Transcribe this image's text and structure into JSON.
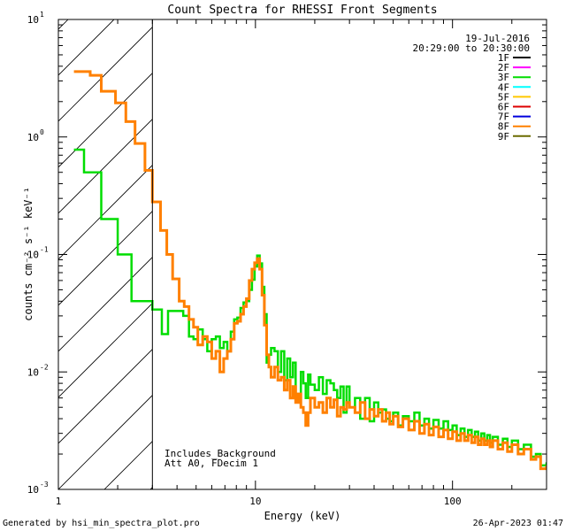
{
  "chart_data": {
    "type": "line",
    "title": "Count Spectra for RHESSI Front Segments",
    "xlabel": "Energy (keV)",
    "ylabel": "counts cm⁻² s⁻¹ keV⁻¹",
    "xscale": "log",
    "yscale": "log",
    "xlim": [
      1,
      300
    ],
    "ylim": [
      0.001,
      10
    ],
    "x_ticks": [
      {
        "value": 1,
        "label": "1"
      },
      {
        "value": 10,
        "label": "10"
      },
      {
        "value": 100,
        "label": "100"
      }
    ],
    "y_ticks": [
      {
        "value": 0.001,
        "base": "10",
        "exp": "-3"
      },
      {
        "value": 0.01,
        "base": "10",
        "exp": "-2"
      },
      {
        "value": 0.1,
        "base": "10",
        "exp": "-1"
      },
      {
        "value": 1,
        "base": "10",
        "exp": "0"
      },
      {
        "value": 10,
        "base": "10",
        "exp": "1"
      }
    ],
    "date": "19-Jul-2016",
    "time_range": "20:29:00 to 20:30:00",
    "legend": [
      {
        "name": "1F",
        "color": "#000000"
      },
      {
        "name": "2F",
        "color": "#ff00ff"
      },
      {
        "name": "3F",
        "color": "#00dd00"
      },
      {
        "name": "4F",
        "color": "#00ffff"
      },
      {
        "name": "5F",
        "color": "#ffc800"
      },
      {
        "name": "6F",
        "color": "#dd0000"
      },
      {
        "name": "7F",
        "color": "#0000dd"
      },
      {
        "name": "8F",
        "color": "#ff8000"
      },
      {
        "name": "9F",
        "color": "#6b6b00"
      }
    ],
    "shaded_region": {
      "xmin": 1,
      "xmax": 3,
      "style": "diagonal-hatch"
    },
    "annotations": [
      "Includes_Background",
      "Att A0, FDecim 1"
    ],
    "series": [
      {
        "name": "3F",
        "color": "#00dd00",
        "points": [
          [
            1.2,
            0.78
          ],
          [
            1.35,
            0.5
          ],
          [
            1.65,
            0.2
          ],
          [
            2.0,
            0.1
          ],
          [
            2.35,
            0.04
          ],
          [
            3.0,
            0.034
          ],
          [
            3.35,
            0.021
          ],
          [
            3.6,
            0.033
          ],
          [
            4.0,
            0.033
          ],
          [
            4.3,
            0.03
          ],
          [
            4.6,
            0.02
          ],
          [
            4.85,
            0.019
          ],
          [
            5.1,
            0.023
          ],
          [
            5.4,
            0.019
          ],
          [
            5.7,
            0.015
          ],
          [
            6.0,
            0.019
          ],
          [
            6.3,
            0.02
          ],
          [
            6.6,
            0.016
          ],
          [
            6.9,
            0.018
          ],
          [
            7.2,
            0.015
          ],
          [
            7.5,
            0.022
          ],
          [
            7.8,
            0.028
          ],
          [
            8.1,
            0.029
          ],
          [
            8.4,
            0.035
          ],
          [
            8.7,
            0.039
          ],
          [
            9.0,
            0.04
          ],
          [
            9.3,
            0.05
          ],
          [
            9.6,
            0.061
          ],
          [
            9.9,
            0.079
          ],
          [
            10.2,
            0.098
          ],
          [
            10.5,
            0.084
          ],
          [
            10.8,
            0.053
          ],
          [
            11.1,
            0.031
          ],
          [
            11.4,
            0.012
          ],
          [
            11.7,
            0.014
          ],
          [
            12.0,
            0.016
          ],
          [
            12.5,
            0.015
          ],
          [
            13.0,
            0.01
          ],
          [
            13.5,
            0.015
          ],
          [
            14.0,
            0.0085
          ],
          [
            14.5,
            0.013
          ],
          [
            15.0,
            0.009
          ],
          [
            15.5,
            0.012
          ],
          [
            16.0,
            0.0065
          ],
          [
            16.5,
            0.006
          ],
          [
            17.0,
            0.01
          ],
          [
            17.5,
            0.008
          ],
          [
            18.0,
            0.006
          ],
          [
            18.5,
            0.0095
          ],
          [
            19.0,
            0.0078
          ],
          [
            20.0,
            0.007
          ],
          [
            21.0,
            0.009
          ],
          [
            22.0,
            0.0065
          ],
          [
            23.0,
            0.0085
          ],
          [
            24.0,
            0.008
          ],
          [
            25.0,
            0.007
          ],
          [
            26.0,
            0.006
          ],
          [
            27.0,
            0.0075
          ],
          [
            28.0,
            0.0045
          ],
          [
            29.0,
            0.0075
          ],
          [
            30.0,
            0.005
          ],
          [
            32.0,
            0.006
          ],
          [
            34.0,
            0.004
          ],
          [
            36.0,
            0.006
          ],
          [
            38.0,
            0.0038
          ],
          [
            40.0,
            0.0055
          ],
          [
            42.0,
            0.0045
          ],
          [
            44.0,
            0.0048
          ],
          [
            46.0,
            0.004
          ],
          [
            48.0,
            0.0038
          ],
          [
            50.0,
            0.0045
          ],
          [
            53.0,
            0.0035
          ],
          [
            56.0,
            0.0042
          ],
          [
            60.0,
            0.0038
          ],
          [
            64.0,
            0.0045
          ],
          [
            68.0,
            0.0035
          ],
          [
            72.0,
            0.004
          ],
          [
            76.0,
            0.0033
          ],
          [
            80.0,
            0.0039
          ],
          [
            85.0,
            0.0033
          ],
          [
            90.0,
            0.0038
          ],
          [
            95.0,
            0.0032
          ],
          [
            100.0,
            0.0035
          ],
          [
            105.0,
            0.0029
          ],
          [
            110.0,
            0.0033
          ],
          [
            115.0,
            0.0028
          ],
          [
            120.0,
            0.0032
          ],
          [
            125.0,
            0.0028
          ],
          [
            130.0,
            0.0031
          ],
          [
            135.0,
            0.0026
          ],
          [
            140.0,
            0.003
          ],
          [
            145.0,
            0.0026
          ],
          [
            150.0,
            0.0029
          ],
          [
            155.0,
            0.0025
          ],
          [
            160.0,
            0.0028
          ],
          [
            170.0,
            0.0024
          ],
          [
            180.0,
            0.0027
          ],
          [
            190.0,
            0.0023
          ],
          [
            200.0,
            0.0026
          ],
          [
            215.0,
            0.0022
          ],
          [
            230.0,
            0.0024
          ],
          [
            250.0,
            0.0019
          ],
          [
            265.0,
            0.002
          ],
          [
            280.0,
            0.0016
          ],
          [
            300.0,
            0.0017
          ]
        ]
      },
      {
        "name": "8F",
        "color": "#ff8000",
        "points": [
          [
            1.2,
            3.6
          ],
          [
            1.45,
            3.35
          ],
          [
            1.65,
            2.45
          ],
          [
            1.95,
            1.95
          ],
          [
            2.2,
            1.35
          ],
          [
            2.45,
            0.88
          ],
          [
            2.75,
            0.52
          ],
          [
            3.0,
            0.28
          ],
          [
            3.3,
            0.16
          ],
          [
            3.55,
            0.1
          ],
          [
            3.8,
            0.062
          ],
          [
            4.1,
            0.04
          ],
          [
            4.35,
            0.036
          ],
          [
            4.6,
            0.028
          ],
          [
            4.85,
            0.024
          ],
          [
            5.1,
            0.017
          ],
          [
            5.4,
            0.02
          ],
          [
            5.7,
            0.018
          ],
          [
            6.0,
            0.013
          ],
          [
            6.3,
            0.015
          ],
          [
            6.6,
            0.01
          ],
          [
            6.9,
            0.013
          ],
          [
            7.2,
            0.015
          ],
          [
            7.5,
            0.019
          ],
          [
            7.8,
            0.026
          ],
          [
            8.1,
            0.027
          ],
          [
            8.4,
            0.031
          ],
          [
            8.7,
            0.036
          ],
          [
            9.0,
            0.042
          ],
          [
            9.3,
            0.06
          ],
          [
            9.6,
            0.075
          ],
          [
            9.9,
            0.085
          ],
          [
            10.2,
            0.092
          ],
          [
            10.5,
            0.075
          ],
          [
            10.8,
            0.045
          ],
          [
            11.1,
            0.025
          ],
          [
            11.4,
            0.014
          ],
          [
            11.7,
            0.011
          ],
          [
            12.0,
            0.009
          ],
          [
            12.5,
            0.011
          ],
          [
            13.0,
            0.0085
          ],
          [
            13.5,
            0.009
          ],
          [
            14.0,
            0.007
          ],
          [
            14.5,
            0.0085
          ],
          [
            15.0,
            0.006
          ],
          [
            15.5,
            0.0075
          ],
          [
            16.0,
            0.0055
          ],
          [
            16.5,
            0.0065
          ],
          [
            17.0,
            0.005
          ],
          [
            17.5,
            0.0045
          ],
          [
            18.0,
            0.0035
          ],
          [
            18.5,
            0.0045
          ],
          [
            19.0,
            0.006
          ],
          [
            20.0,
            0.005
          ],
          [
            21.0,
            0.0055
          ],
          [
            22.0,
            0.0045
          ],
          [
            23.0,
            0.006
          ],
          [
            24.0,
            0.005
          ],
          [
            25.0,
            0.0058
          ],
          [
            26.0,
            0.0042
          ],
          [
            27.0,
            0.005
          ],
          [
            28.0,
            0.0048
          ],
          [
            29.0,
            0.0055
          ],
          [
            30.0,
            0.005
          ],
          [
            32.0,
            0.0045
          ],
          [
            34.0,
            0.0055
          ],
          [
            36.0,
            0.004
          ],
          [
            38.0,
            0.0048
          ],
          [
            40.0,
            0.0042
          ],
          [
            42.0,
            0.0048
          ],
          [
            44.0,
            0.0038
          ],
          [
            46.0,
            0.0045
          ],
          [
            48.0,
            0.0036
          ],
          [
            50.0,
            0.0042
          ],
          [
            53.0,
            0.0034
          ],
          [
            56.0,
            0.004
          ],
          [
            60.0,
            0.0032
          ],
          [
            64.0,
            0.0038
          ],
          [
            68.0,
            0.003
          ],
          [
            72.0,
            0.0036
          ],
          [
            76.0,
            0.0029
          ],
          [
            80.0,
            0.0034
          ],
          [
            85.0,
            0.0028
          ],
          [
            90.0,
            0.0032
          ],
          [
            95.0,
            0.0027
          ],
          [
            100.0,
            0.0031
          ],
          [
            105.0,
            0.0026
          ],
          [
            110.0,
            0.003
          ],
          [
            115.0,
            0.0026
          ],
          [
            120.0,
            0.0029
          ],
          [
            125.0,
            0.0025
          ],
          [
            130.0,
            0.0028
          ],
          [
            135.0,
            0.0024
          ],
          [
            140.0,
            0.0027
          ],
          [
            145.0,
            0.0024
          ],
          [
            150.0,
            0.0026
          ],
          [
            155.0,
            0.0023
          ],
          [
            160.0,
            0.0026
          ],
          [
            170.0,
            0.0022
          ],
          [
            180.0,
            0.0025
          ],
          [
            190.0,
            0.0021
          ],
          [
            200.0,
            0.0024
          ],
          [
            215.0,
            0.002
          ],
          [
            230.0,
            0.0022
          ],
          [
            250.0,
            0.0018
          ],
          [
            265.0,
            0.0019
          ],
          [
            280.0,
            0.0015
          ],
          [
            300.0,
            0.0016
          ]
        ]
      }
    ]
  },
  "footer": {
    "generated_by": "Generated by hsi_min_spectra_plot.pro",
    "timestamp": "26-Apr-2023 01:47"
  }
}
